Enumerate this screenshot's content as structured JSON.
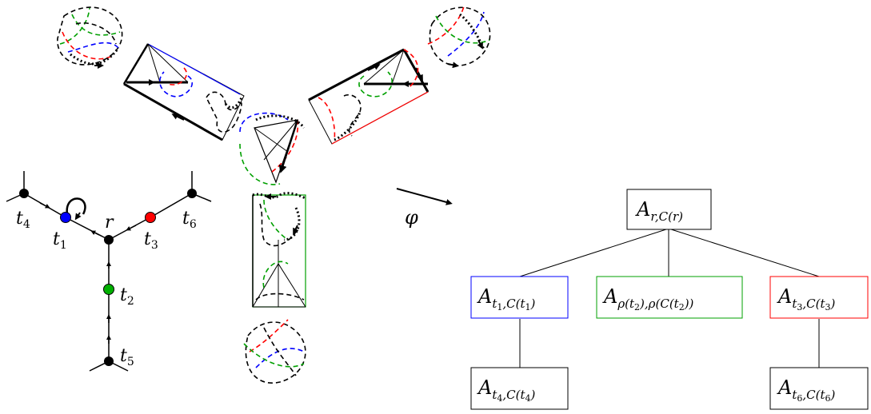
{
  "colors": {
    "black": "#000000",
    "blue": "#0000ff",
    "red": "#ff0000",
    "green": "#00a000",
    "box_blue": "#0000ff",
    "box_green": "#00a000",
    "box_red": "#ff0000"
  },
  "tree": {
    "labels": {
      "r": "r",
      "t1": "t",
      "t1_sub": "1",
      "t2": "t",
      "t2_sub": "2",
      "t3": "t",
      "t3_sub": "3",
      "t4": "t",
      "t4_sub": "4",
      "t5": "t",
      "t5_sub": "5",
      "t6": "t",
      "t6_sub": "6"
    }
  },
  "map_label": "φ",
  "boxes": {
    "root": {
      "main": "A",
      "sub": "r,C(r)"
    },
    "t1": {
      "main": "A",
      "sub": "t",
      "subsub": "1",
      "sub2": ",C(t",
      "sub2sub": "1",
      "sub3": ")"
    },
    "t2": {
      "main": "A",
      "sub": "ρ(t",
      "subsub": "2",
      "sub2": "),ρ(C(t",
      "sub2sub": "2",
      "sub3": "))"
    },
    "t3": {
      "main": "A",
      "sub": "t",
      "subsub": "3",
      "sub2": ",C(t",
      "sub2sub": "3",
      "sub3": ")"
    },
    "t4": {
      "main": "A",
      "sub": "t",
      "subsub": "4",
      "sub2": ",C(t",
      "sub2sub": "4",
      "sub3": ")"
    },
    "t6": {
      "main": "A",
      "sub": "t",
      "subsub": "6",
      "sub2": ",C(t",
      "sub2sub": "6",
      "sub3": ")"
    }
  }
}
